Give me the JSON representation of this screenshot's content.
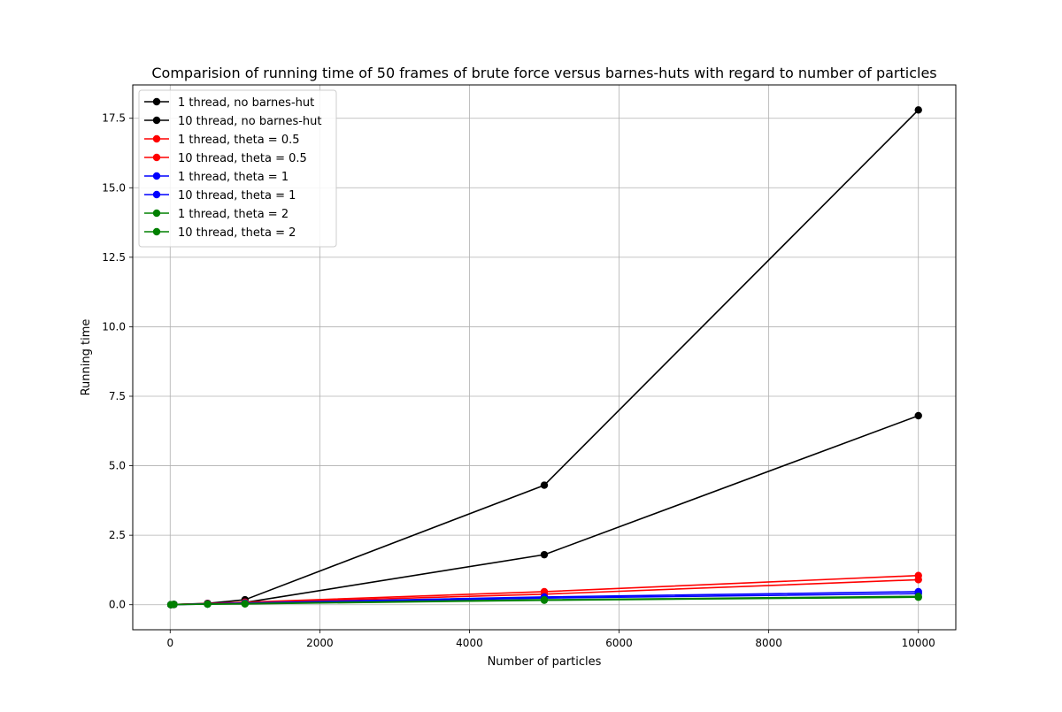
{
  "chart_data": {
    "type": "line",
    "title": "Comparision of running time of 50 frames of brute force versus barnes-huts with regard to number of particles",
    "xlabel": "Number of particles",
    "ylabel": "Running time",
    "xlim": [
      -500,
      10500
    ],
    "ylim": [
      -0.9,
      18.7
    ],
    "xticks": [
      0,
      2000,
      4000,
      6000,
      8000,
      10000
    ],
    "xtick_labels": [
      "0",
      "2000",
      "4000",
      "6000",
      "8000",
      "10000"
    ],
    "yticks": [
      0,
      2.5,
      5,
      7.5,
      10,
      12.5,
      15,
      17.5
    ],
    "ytick_labels": [
      "0.0",
      "2.5",
      "5.0",
      "7.5",
      "10.0",
      "12.5",
      "15.0",
      "17.5"
    ],
    "grid": true,
    "legend_position": "top-left",
    "x": [
      10,
      50,
      500,
      1000,
      5000,
      10000
    ],
    "series": [
      {
        "name": "1 thread, no barnes-hut",
        "color": "#000000",
        "values": [
          0.0,
          0.01,
          0.05,
          0.18,
          4.3,
          17.8
        ]
      },
      {
        "name": "10 thread, no barnes-hut",
        "color": "#000000",
        "values": [
          0.0,
          0.01,
          0.03,
          0.08,
          1.8,
          6.8
        ]
      },
      {
        "name": "1 thread, theta = 0.5",
        "color": "#ff0000",
        "values": [
          0.0,
          0.01,
          0.04,
          0.09,
          0.47,
          1.05
        ]
      },
      {
        "name": "10 thread, theta = 0.5",
        "color": "#ff0000",
        "values": [
          0.0,
          0.01,
          0.03,
          0.07,
          0.38,
          0.9
        ]
      },
      {
        "name": "1 thread, theta = 1",
        "color": "#0000ff",
        "values": [
          0.0,
          0.01,
          0.03,
          0.06,
          0.28,
          0.47
        ]
      },
      {
        "name": "10 thread, theta = 1",
        "color": "#0000ff",
        "values": [
          0.0,
          0.01,
          0.02,
          0.05,
          0.24,
          0.4
        ]
      },
      {
        "name": "1 thread, theta = 2",
        "color": "#008000",
        "values": [
          0.0,
          0.01,
          0.02,
          0.04,
          0.18,
          0.3
        ]
      },
      {
        "name": "10 thread, theta = 2",
        "color": "#008000",
        "values": [
          0.0,
          0.01,
          0.02,
          0.03,
          0.16,
          0.27
        ]
      }
    ]
  }
}
